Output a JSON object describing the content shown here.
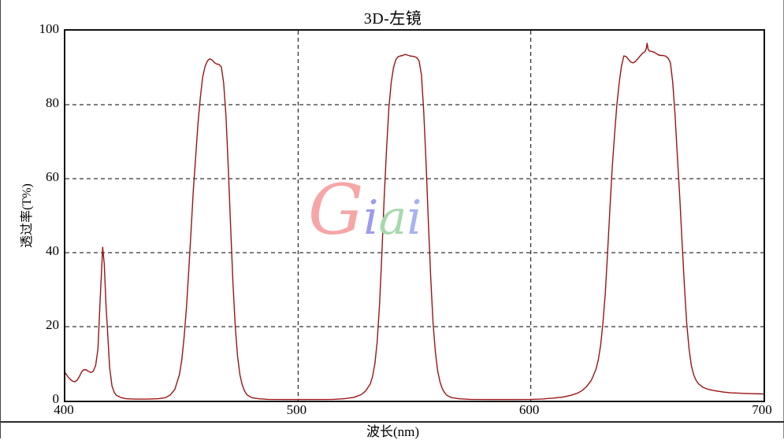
{
  "chart_data": {
    "type": "line",
    "title": "3D-左镜",
    "xlabel": "波长(nm)",
    "ylabel": "透过率(T%)",
    "xlim": [
      400,
      700
    ],
    "ylim": [
      0,
      100
    ],
    "x_ticks": [
      400,
      500,
      600,
      700
    ],
    "y_ticks": [
      0,
      20,
      40,
      60,
      80,
      100
    ],
    "x_gridlines": [
      500,
      600
    ],
    "y_gridlines": [
      20,
      40,
      60,
      80
    ],
    "grid_style": "dashed",
    "legend": "none",
    "line_color": "#9b1414",
    "frame_color": "#111111",
    "series": [
      {
        "name": "透过率",
        "points": [
          [
            400,
            7.5
          ],
          [
            401,
            6.5
          ],
          [
            402,
            5.8
          ],
          [
            403,
            5.3
          ],
          [
            404,
            5.1
          ],
          [
            405,
            5.5
          ],
          [
            406,
            6.5
          ],
          [
            407,
            7.8
          ],
          [
            408,
            8.4
          ],
          [
            409,
            8.3
          ],
          [
            410,
            7.9
          ],
          [
            411,
            7.6
          ],
          [
            412,
            8.0
          ],
          [
            413,
            9.5
          ],
          [
            414,
            14
          ],
          [
            415,
            28
          ],
          [
            416,
            41.5
          ],
          [
            416.7,
            37
          ],
          [
            417.5,
            25
          ],
          [
            418,
            20
          ],
          [
            419,
            9
          ],
          [
            420,
            4
          ],
          [
            421,
            2.2
          ],
          [
            422,
            1.4
          ],
          [
            424,
            0.8
          ],
          [
            426,
            0.5
          ],
          [
            430,
            0.4
          ],
          [
            435,
            0.4
          ],
          [
            440,
            0.5
          ],
          [
            443,
            0.8
          ],
          [
            445,
            1.5
          ],
          [
            447,
            3
          ],
          [
            449,
            7
          ],
          [
            450,
            11
          ],
          [
            451,
            17
          ],
          [
            452,
            25
          ],
          [
            453,
            35
          ],
          [
            454,
            46
          ],
          [
            455,
            57
          ],
          [
            456,
            66
          ],
          [
            457,
            75
          ],
          [
            458,
            82
          ],
          [
            459,
            87.5
          ],
          [
            460,
            90.3
          ],
          [
            461,
            91.8
          ],
          [
            462,
            92.4
          ],
          [
            463,
            92.1
          ],
          [
            464,
            91.4
          ],
          [
            465,
            91.0
          ],
          [
            466,
            90.9
          ],
          [
            467,
            90.2
          ],
          [
            468,
            86
          ],
          [
            469,
            77
          ],
          [
            470,
            63
          ],
          [
            471,
            47
          ],
          [
            472,
            32
          ],
          [
            473,
            20
          ],
          [
            474,
            12
          ],
          [
            475,
            7
          ],
          [
            476,
            4.2
          ],
          [
            477,
            2.6
          ],
          [
            478,
            1.6
          ],
          [
            480,
            0.8
          ],
          [
            483,
            0.5
          ],
          [
            487,
            0.35
          ],
          [
            495,
            0.3
          ],
          [
            505,
            0.3
          ],
          [
            515,
            0.35
          ],
          [
            520,
            0.5
          ],
          [
            524,
            0.9
          ],
          [
            527,
            1.6
          ],
          [
            529,
            2.6
          ],
          [
            531,
            4.5
          ],
          [
            532,
            6.5
          ],
          [
            533,
            10
          ],
          [
            534,
            16
          ],
          [
            535,
            26
          ],
          [
            536,
            40
          ],
          [
            537,
            55
          ],
          [
            538,
            68
          ],
          [
            539,
            79
          ],
          [
            540,
            86
          ],
          [
            541,
            90
          ],
          [
            542,
            92.2
          ],
          [
            543,
            93
          ],
          [
            544,
            93.2
          ],
          [
            545,
            93.3
          ],
          [
            546,
            93.6
          ],
          [
            547,
            93.4
          ],
          [
            548,
            93.2
          ],
          [
            549,
            93.1
          ],
          [
            550,
            93.0
          ],
          [
            551,
            92.7
          ],
          [
            552,
            91.8
          ],
          [
            553,
            88
          ],
          [
            554,
            78
          ],
          [
            555,
            64
          ],
          [
            556,
            48
          ],
          [
            557,
            33
          ],
          [
            558,
            21
          ],
          [
            559,
            13
          ],
          [
            560,
            8
          ],
          [
            561,
            5
          ],
          [
            562,
            3.2
          ],
          [
            563,
            2.1
          ],
          [
            564,
            1.4
          ],
          [
            566,
            0.8
          ],
          [
            569,
            0.5
          ],
          [
            574,
            0.35
          ],
          [
            582,
            0.3
          ],
          [
            592,
            0.3
          ],
          [
            600,
            0.35
          ],
          [
            605,
            0.45
          ],
          [
            610,
            0.7
          ],
          [
            614,
            1
          ],
          [
            617,
            1.4
          ],
          [
            620,
            2
          ],
          [
            622,
            2.7
          ],
          [
            624,
            3.8
          ],
          [
            626,
            5.5
          ],
          [
            628,
            8.5
          ],
          [
            629,
            11
          ],
          [
            630,
            15
          ],
          [
            631,
            21
          ],
          [
            632,
            29
          ],
          [
            633,
            40
          ],
          [
            634,
            52
          ],
          [
            635,
            63
          ],
          [
            636,
            72
          ],
          [
            637,
            80
          ],
          [
            638,
            86
          ],
          [
            639,
            90.5
          ],
          [
            640,
            93.2
          ],
          [
            641,
            93.0
          ],
          [
            642,
            92.2
          ],
          [
            643,
            91.5
          ],
          [
            644,
            91.3
          ],
          [
            645,
            91.7
          ],
          [
            646,
            92.4
          ],
          [
            647,
            93.2
          ],
          [
            648,
            93.9
          ],
          [
            649,
            94.3
          ],
          [
            649.6,
            95.2
          ],
          [
            650,
            96.6
          ],
          [
            650.4,
            95.0
          ],
          [
            651,
            94.5
          ],
          [
            652,
            94.4
          ],
          [
            653,
            94.2
          ],
          [
            654,
            93.8
          ],
          [
            655,
            93.4
          ],
          [
            656,
            93.3
          ],
          [
            657,
            93.3
          ],
          [
            658,
            93.1
          ],
          [
            659,
            92.6
          ],
          [
            660,
            91.3
          ],
          [
            661,
            86
          ],
          [
            662,
            77
          ],
          [
            663,
            66
          ],
          [
            664,
            55
          ],
          [
            665,
            43
          ],
          [
            666,
            31
          ],
          [
            667,
            21
          ],
          [
            668,
            14
          ],
          [
            669,
            9.5
          ],
          [
            670,
            7
          ],
          [
            671,
            5.5
          ],
          [
            672,
            4.6
          ],
          [
            674,
            3.6
          ],
          [
            676,
            3.1
          ],
          [
            678,
            2.8
          ],
          [
            680,
            2.6
          ],
          [
            683,
            2.3
          ],
          [
            686,
            2.1
          ],
          [
            690,
            2.0
          ],
          [
            694,
            1.9
          ],
          [
            700,
            1.8
          ]
        ]
      }
    ]
  },
  "watermark": {
    "text": "Giai",
    "letters": [
      {
        "char": "G",
        "color": "#f6a6a6"
      },
      {
        "char": "i",
        "color": "#9c9cee"
      },
      {
        "char": "a",
        "color": "#a6d9ae"
      },
      {
        "char": "i",
        "color": "#a9b2f0"
      }
    ]
  }
}
